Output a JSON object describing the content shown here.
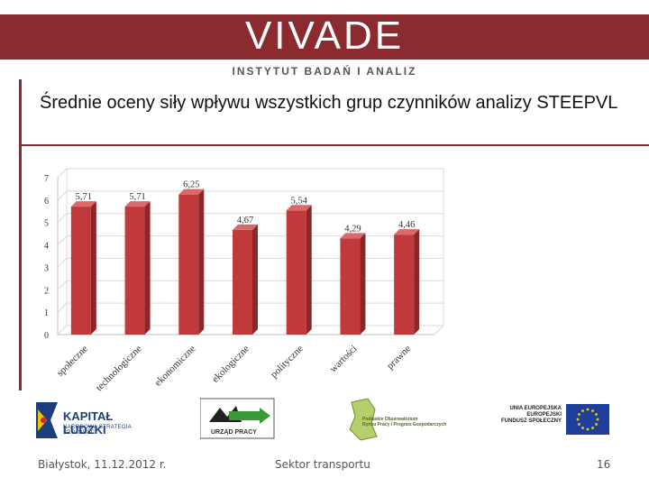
{
  "header": {
    "logo_text": "VIVADE",
    "logo_subtitle": "INSTYTUT BADAŃ I ANALIZ",
    "brand_color": "#8b2a2f"
  },
  "slide": {
    "title": "Średnie oceny siły wpływu wszystkich grup czynników analizy STEEPVL"
  },
  "chart_data": {
    "type": "bar",
    "categories": [
      "społeczne",
      "technologiczne",
      "ekonomiczne",
      "ekologiczne",
      "polityczne",
      "wartości",
      "prawne"
    ],
    "values": [
      5.71,
      5.71,
      6.25,
      4.67,
      5.54,
      4.29,
      4.46
    ],
    "value_labels": [
      "5,71",
      "5,71",
      "6,25",
      "4,67",
      "5,54",
      "4,29",
      "4,46"
    ],
    "yticks": [
      "0",
      "1",
      "2",
      "3",
      "4",
      "5",
      "6",
      "7"
    ],
    "ylim": [
      0,
      7
    ],
    "grid": true,
    "bar_color": "#c0393b",
    "title": "",
    "xlabel": "",
    "ylabel": ""
  },
  "logos": {
    "kapital_ludzki": {
      "title": "KAPITAŁ LUDZKI",
      "subtitle": "NARODOWA STRATEGIA SPÓJNOŚCI"
    },
    "urzad_pracy": {
      "label": "URZĄD PRACY"
    },
    "obserwatorium": {
      "line1": "Podlaskie Obserwatorium",
      "line2": "Rynku Pracy i Prognoz Gospodarczych"
    },
    "unia": {
      "line1": "UNIA EUROPEJSKA",
      "line2": "EUROPEJSKI",
      "line3": "FUNDUSZ SPOŁECZNY"
    }
  },
  "footer": {
    "left": "Białystok, 11.12.2012 r.",
    "center": "Sektor transportu",
    "page": "16"
  }
}
